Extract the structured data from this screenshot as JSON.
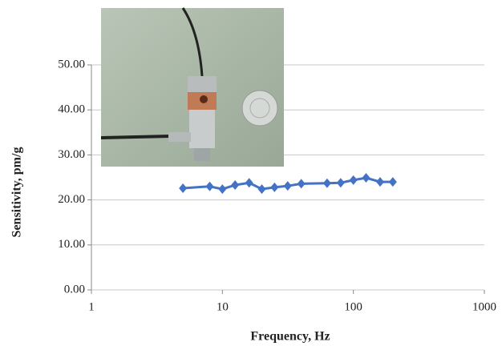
{
  "chart_data": {
    "type": "line",
    "x_label": "Frequency, Hz",
    "y_label": "Sensitivity, pm/g",
    "x": [
      5,
      8,
      10,
      12.5,
      16,
      20,
      25,
      31.5,
      40,
      63,
      80,
      100,
      125,
      160,
      200
    ],
    "series": [
      {
        "color": "#4472c4",
        "values": [
          22.6,
          23.0,
          22.4,
          23.3,
          23.8,
          22.4,
          22.8,
          23.1,
          23.6,
          23.7,
          23.8,
          24.4,
          24.9,
          24.0,
          24.0
        ]
      }
    ],
    "xscale": "log",
    "xlim": [
      1,
      1000
    ],
    "xticks": [
      1,
      10,
      100,
      1000
    ],
    "ylim": [
      0,
      50
    ],
    "yticks": [
      {
        "value": 0,
        "label": "0.00"
      },
      {
        "value": 10,
        "label": "10.00"
      },
      {
        "value": 20,
        "label": "20.00"
      },
      {
        "value": 30,
        "label": "30.00"
      },
      {
        "value": 40,
        "label": "40.00"
      },
      {
        "value": 50,
        "label": "50.00"
      }
    ],
    "grid": true
  }
}
